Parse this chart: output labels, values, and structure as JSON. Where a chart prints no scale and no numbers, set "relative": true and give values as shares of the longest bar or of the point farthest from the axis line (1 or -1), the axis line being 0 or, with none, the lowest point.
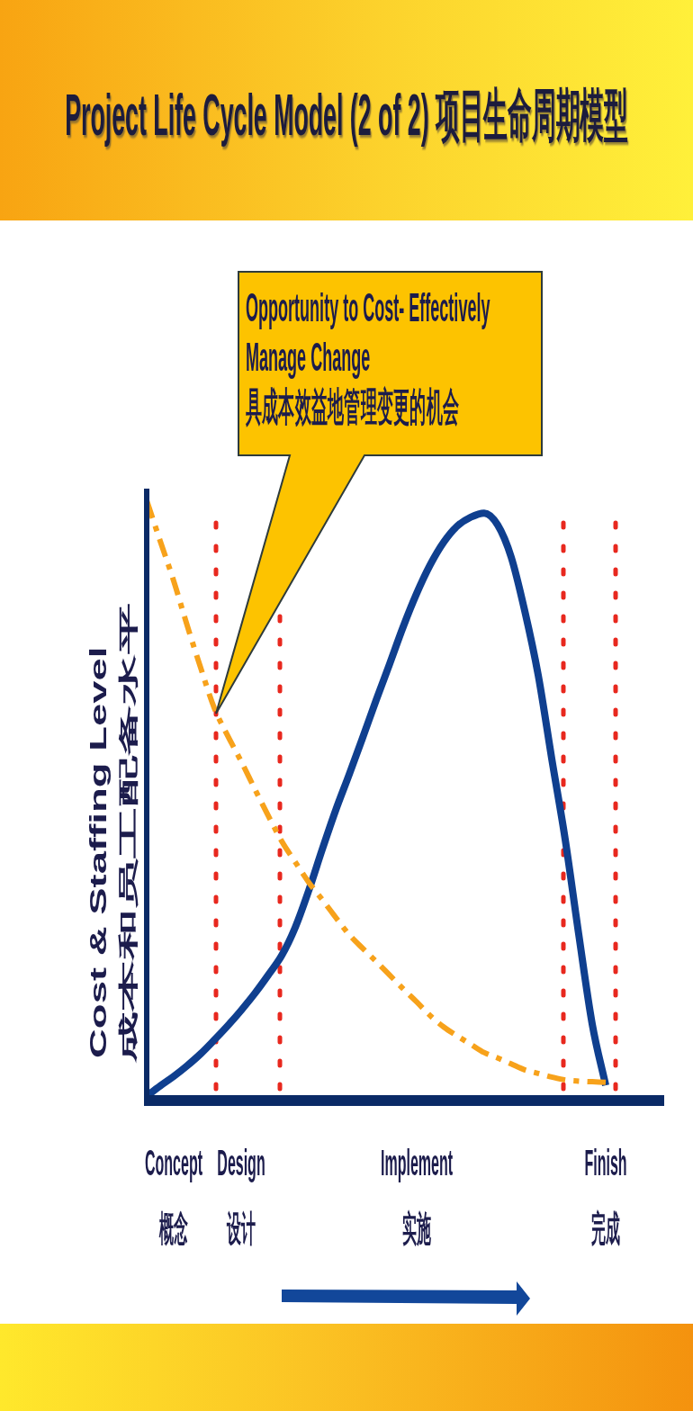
{
  "chart_data": {
    "type": "line",
    "title": "Project Life Cycle Model (2 of 2) 项目生命周期模型",
    "ylabel": "Cost & Staffing Level\n成本和员工配备水平",
    "relative": true,
    "categories": [
      null,
      null,
      "Concept\n概念",
      null,
      null,
      null,
      null,
      "Design\n设计",
      null,
      null,
      null,
      null,
      null,
      null,
      null,
      null,
      null,
      null,
      null,
      null,
      "Implement\n实施",
      null,
      null,
      null,
      null,
      null,
      null,
      null,
      null,
      null,
      null,
      null,
      null,
      null,
      "Finish\n完成"
    ],
    "series": [
      {
        "color": "#0f3f8f",
        "line_style": "solid",
        "values": [
          0,
          0.017,
          0.033,
          0.051,
          0.071,
          0.094,
          0.118,
          0.144,
          0.172,
          0.203,
          0.236,
          0.283,
          0.345,
          0.414,
          0.48,
          0.54,
          0.602,
          0.665,
          0.726,
          0.788,
          0.844,
          0.892,
          0.93,
          0.957,
          0.972,
          0.979,
          0.959,
          0.905,
          0.815,
          0.707,
          0.567,
          0.431,
          0.272,
          0.121,
          0.018
        ]
      },
      {
        "color": "#f7a21b",
        "line_style": "dashed",
        "values": [
          1.0,
          0.932,
          0.865,
          0.79,
          0.719,
          0.652,
          0.605,
          0.562,
          0.516,
          0.471,
          0.428,
          0.393,
          0.359,
          0.33,
          0.3,
          0.271,
          0.248,
          0.226,
          0.203,
          0.18,
          0.158,
          0.135,
          0.116,
          0.101,
          0.087,
          0.073,
          0.064,
          0.054,
          0.044,
          0.038,
          0.032,
          0.027,
          0.025,
          0.024,
          0.023
        ]
      }
    ],
    "annotations": [
      "Opportunity to Cost- Effectively Manage Change\n具成本效益地管理变更的机会"
    ]
  }
}
